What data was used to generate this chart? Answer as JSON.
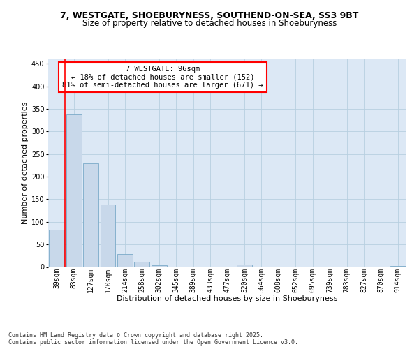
{
  "title1": "7, WESTGATE, SHOEBURYNESS, SOUTHEND-ON-SEA, SS3 9BT",
  "title2": "Size of property relative to detached houses in Shoeburyness",
  "xlabel": "Distribution of detached houses by size in Shoeburyness",
  "ylabel": "Number of detached properties",
  "categories": [
    "39sqm",
    "83sqm",
    "127sqm",
    "170sqm",
    "214sqm",
    "258sqm",
    "302sqm",
    "345sqm",
    "389sqm",
    "433sqm",
    "477sqm",
    "520sqm",
    "564sqm",
    "608sqm",
    "652sqm",
    "695sqm",
    "739sqm",
    "783sqm",
    "827sqm",
    "870sqm",
    "914sqm"
  ],
  "values": [
    83,
    338,
    230,
    139,
    29,
    11,
    4,
    0,
    0,
    0,
    0,
    5,
    0,
    0,
    0,
    0,
    0,
    0,
    0,
    0,
    2
  ],
  "bar_facecolor": "#c8d8ea",
  "bar_edgecolor": "#7aaac8",
  "grid_color": "#b8cfe0",
  "bg_color": "#dce8f5",
  "annotation_text": "7 WESTGATE: 96sqm\n← 18% of detached houses are smaller (152)\n81% of semi-detached houses are larger (671) →",
  "annotation_box_edgecolor": "red",
  "ylim_max": 460,
  "yticks": [
    0,
    50,
    100,
    150,
    200,
    250,
    300,
    350,
    400,
    450
  ],
  "footer": "Contains HM Land Registry data © Crown copyright and database right 2025.\nContains public sector information licensed under the Open Government Licence v3.0.",
  "title1_fontsize": 9,
  "title2_fontsize": 8.5,
  "axis_label_fontsize": 8,
  "tick_fontsize": 7,
  "annotation_fontsize": 7.5,
  "footer_fontsize": 6
}
